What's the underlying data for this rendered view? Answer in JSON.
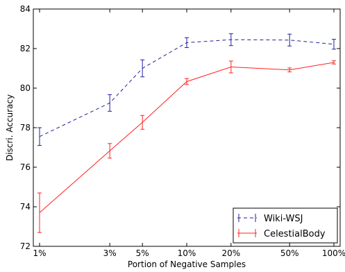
{
  "chart_data": {
    "type": "line",
    "xlabel": "Portion of Negative Samples",
    "ylabel": "Discri. Accuracy",
    "x_scale": "log",
    "categories": [
      "1%",
      "3%",
      "5%",
      "10%",
      "20%",
      "50%",
      "100%"
    ],
    "x": [
      1,
      3,
      5,
      10,
      20,
      50,
      100
    ],
    "ylim": [
      72,
      84
    ],
    "yticks": [
      "72",
      "74",
      "76",
      "78",
      "80",
      "82",
      "84"
    ],
    "grid": false,
    "legend_position": "bottom-right",
    "series": [
      {
        "name": "Wiki-WSJ",
        "color": "#1f1f9c",
        "style": "dashed",
        "values": [
          77.55,
          79.25,
          81.0,
          82.3,
          82.45,
          82.43,
          82.22
        ],
        "errors": [
          0.45,
          0.42,
          0.43,
          0.25,
          0.3,
          0.3,
          0.25
        ]
      },
      {
        "name": "CelestialBody",
        "color": "#ff2020",
        "style": "solid",
        "values": [
          73.7,
          76.83,
          78.27,
          80.33,
          81.07,
          80.92,
          81.3
        ],
        "errors": [
          1.0,
          0.37,
          0.35,
          0.15,
          0.3,
          0.1,
          0.08
        ]
      }
    ]
  }
}
